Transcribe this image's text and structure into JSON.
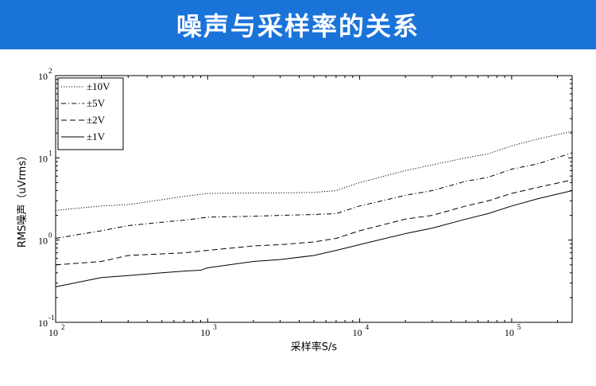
{
  "header": {
    "title": "噪声与采样率的关系",
    "bg_color": "#1a73d9"
  },
  "chart_data": {
    "type": "line",
    "title": "",
    "xlabel": "采样率S/s",
    "ylabel": "RMS噪声（uVrms）",
    "xscale": "log",
    "yscale": "log",
    "xlim": [
      100,
      250000
    ],
    "ylim": [
      0.1,
      100
    ],
    "x_ticks": [
      {
        "base": "10",
        "exp": "2",
        "value": 100
      },
      {
        "base": "10",
        "exp": "3",
        "value": 1000
      },
      {
        "base": "10",
        "exp": "4",
        "value": 10000
      },
      {
        "base": "10",
        "exp": "5",
        "value": 100000
      }
    ],
    "y_ticks": [
      {
        "base": "10",
        "exp": "-1",
        "value": 0.1
      },
      {
        "base": "10",
        "exp": "0",
        "value": 1
      },
      {
        "base": "10",
        "exp": "1",
        "value": 10
      },
      {
        "base": "10",
        "exp": "2",
        "value": 100
      }
    ],
    "legend_position": "top-left",
    "grid": false,
    "series": [
      {
        "name": "±10V",
        "dash": "dotted",
        "x": [
          100,
          200,
          300,
          500,
          700,
          1000,
          2000,
          3000,
          5000,
          7000,
          10000,
          20000,
          30000,
          50000,
          70000,
          100000,
          150000,
          250000
        ],
        "y": [
          2.3,
          2.6,
          2.7,
          3.1,
          3.4,
          3.7,
          3.75,
          3.75,
          3.8,
          4.0,
          5.0,
          7.0,
          8.2,
          10.0,
          11.2,
          14.0,
          17.0,
          21.0
        ]
      },
      {
        "name": "±5V",
        "dash": "dashdot",
        "x": [
          100,
          200,
          300,
          500,
          700,
          1000,
          2000,
          3000,
          5000,
          7000,
          10000,
          20000,
          30000,
          50000,
          70000,
          100000,
          150000,
          250000
        ],
        "y": [
          1.05,
          1.3,
          1.5,
          1.65,
          1.75,
          1.9,
          1.95,
          2.0,
          2.05,
          2.1,
          2.6,
          3.5,
          4.0,
          5.2,
          5.8,
          7.3,
          8.5,
          11.5
        ]
      },
      {
        "name": "±2V",
        "dash": "dashed",
        "x": [
          100,
          200,
          300,
          500,
          700,
          1000,
          2000,
          3000,
          5000,
          7000,
          10000,
          20000,
          30000,
          50000,
          70000,
          100000,
          150000,
          250000
        ],
        "y": [
          0.5,
          0.55,
          0.65,
          0.68,
          0.7,
          0.75,
          0.85,
          0.88,
          0.95,
          1.05,
          1.3,
          1.8,
          2.0,
          2.6,
          3.0,
          3.7,
          4.4,
          5.4
        ]
      },
      {
        "name": "±1V",
        "dash": "solid",
        "x": [
          100,
          200,
          300,
          500,
          700,
          900,
          1000,
          2000,
          3000,
          5000,
          7000,
          10000,
          20000,
          30000,
          50000,
          70000,
          100000,
          150000,
          250000
        ],
        "y": [
          0.27,
          0.35,
          0.37,
          0.4,
          0.42,
          0.43,
          0.46,
          0.55,
          0.58,
          0.65,
          0.75,
          0.88,
          1.2,
          1.4,
          1.8,
          2.1,
          2.6,
          3.2,
          4.0
        ]
      }
    ]
  }
}
